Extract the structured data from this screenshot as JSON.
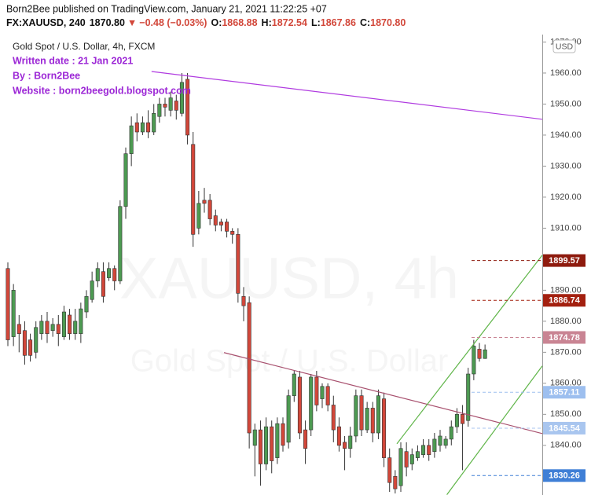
{
  "chart_data": {
    "type": "candlestick",
    "header": {
      "line1": "Born2Bee published on TradingView.com, January 21, 2021 11:22:25 +07",
      "symbol": "FX:XAUUSD, 240",
      "last": "1870.80",
      "arrow": "▼",
      "change": "−0.48 (−0.03%)",
      "ohlc": [
        {
          "label": "O:",
          "value": "1868.88"
        },
        {
          "label": "H:",
          "value": "1872.54"
        },
        {
          "label": "L:",
          "value": "1867.86"
        },
        {
          "label": "C:",
          "value": "1870.80"
        }
      ]
    },
    "legend_title": "Gold Spot / U.S. Dollar, 4h, FXCM",
    "annotations": [
      "Written date : 21 Jan 2021",
      "By : Born2Bee",
      "Website : born2beegold.blogspot.com"
    ],
    "annotation_color": "#9c27d6",
    "watermark": [
      "XAUUSD, 4h",
      "Gold Spot / U.S. Dollar"
    ],
    "currency": "USD",
    "up_color": "#4d9a52",
    "down_color": "#d2473a",
    "xlim": [
      -1.4,
      95.2
    ],
    "ylim": [
      1824,
      1972.4
    ],
    "yticks": [
      {
        "value": 1840,
        "label": "1840.00"
      },
      {
        "value": 1850,
        "label": "1850.00"
      },
      {
        "value": 1860,
        "label": "1860.00"
      },
      {
        "value": 1870,
        "label": "1870.00"
      },
      {
        "value": 1880,
        "label": "1880.00"
      },
      {
        "value": 1890,
        "label": "1890.00"
      },
      {
        "value": 1900,
        "label": "1900.00"
      },
      {
        "value": 1910,
        "label": "1910.00"
      },
      {
        "value": 1920,
        "label": "1920.00"
      },
      {
        "value": 1930,
        "label": "1930.00"
      },
      {
        "value": 1940,
        "label": "1940.00"
      },
      {
        "value": 1950,
        "label": "1950.00"
      },
      {
        "value": 1960,
        "label": "1960.00"
      },
      {
        "value": 1970,
        "label": "1970.00"
      }
    ],
    "open": [
      1897,
      1875,
      1879,
      1877,
      1874,
      1870,
      1876,
      1880,
      1877,
      1879,
      1875,
      1882,
      1876,
      1876,
      1883,
      1887,
      1893,
      1896,
      1894,
      1897,
      1893,
      1917,
      1934,
      1944,
      1941,
      1944,
      1941,
      1946,
      1950,
      1948,
      1951,
      1947,
      1958,
      1937,
      1910,
      1919,
      1919,
      1914,
      1912,
      1912,
      1909,
      1908,
      1888,
      1886,
      1840,
      1845,
      1834,
      1846,
      1836,
      1847,
      1841,
      1856,
      1862,
      1845,
      1845,
      1862,
      1855,
      1859,
      1853,
      1846,
      1841,
      1839,
      1843,
      1856,
      1845,
      1852,
      1844,
      1855,
      1836,
      1830,
      1827,
      1838,
      1834,
      1836,
      1837,
      1840,
      1838,
      1840,
      1840,
      1842,
      1846,
      1850,
      1848,
      1863,
      1871,
      1868
    ],
    "high": [
      1899,
      1892,
      1882,
      1880,
      1876,
      1880,
      1882,
      1883,
      1881,
      1882,
      1885,
      1884,
      1884,
      1886,
      1890,
      1896,
      1899,
      1899,
      1899,
      1898,
      1919,
      1936,
      1946,
      1947,
      1946,
      1948,
      1950,
      1952,
      1952,
      1954,
      1953,
      1960,
      1960,
      1941,
      1922,
      1923,
      1921,
      1916,
      1913,
      1913,
      1910,
      1910,
      1891,
      1888,
      1847,
      1848,
      1849,
      1848,
      1849,
      1849,
      1858,
      1864,
      1864,
      1848,
      1863,
      1864,
      1860,
      1860,
      1856,
      1849,
      1843,
      1846,
      1858,
      1858,
      1854,
      1854,
      1858,
      1857,
      1839,
      1832,
      1841,
      1841,
      1839,
      1840,
      1842,
      1842,
      1844,
      1845,
      1843,
      1848,
      1852,
      1853,
      1865,
      1874,
      1873,
      1872.5
    ],
    "low": [
      1872,
      1872,
      1870,
      1866,
      1867,
      1868,
      1874,
      1873,
      1875,
      1872,
      1874,
      1874,
      1874,
      1873,
      1881,
      1886,
      1891,
      1886,
      1893,
      1890,
      1892,
      1913,
      1930,
      1938,
      1940,
      1939,
      1940,
      1944,
      1946,
      1946,
      1945,
      1946,
      1937,
      1904,
      1908,
      1915,
      1911,
      1909,
      1909,
      1907,
      1905,
      1886,
      1880,
      1839,
      1830,
      1827,
      1832,
      1831,
      1834,
      1838,
      1839,
      1854,
      1842,
      1834,
      1843,
      1851,
      1852,
      1851,
      1841,
      1838,
      1832,
      1836,
      1841,
      1843,
      1844,
      1841,
      1842,
      1833,
      1825,
      1824.5,
      1825,
      1830,
      1832,
      1835,
      1836,
      1835,
      1836,
      1838,
      1839,
      1840,
      1844,
      1832,
      1846,
      1861,
      1867,
      1867.9
    ],
    "close": [
      1874,
      1890,
      1876,
      1869,
      1869,
      1878,
      1880,
      1876,
      1879,
      1876,
      1883,
      1876,
      1880,
      1884,
      1888,
      1893,
      1897,
      1888,
      1897,
      1893,
      1917,
      1934,
      1943,
      1941,
      1944,
      1941,
      1947,
      1950,
      1949,
      1952,
      1948,
      1957,
      1940,
      1908,
      1918,
      1918,
      1913,
      1911,
      1911,
      1909,
      1908,
      1889,
      1885,
      1844,
      1845,
      1834,
      1846,
      1835,
      1847,
      1840,
      1856,
      1863,
      1844,
      1839,
      1862,
      1853,
      1859,
      1853,
      1845,
      1840,
      1839,
      1843,
      1856,
      1845,
      1852,
      1844,
      1856,
      1836,
      1828,
      1826,
      1839,
      1833,
      1837,
      1838,
      1840,
      1837,
      1842,
      1843,
      1842,
      1846,
      1850,
      1847,
      1863,
      1872,
      1868,
      1870.8
    ],
    "trend_lines": [
      {
        "color": "#b03be0",
        "x": [
          25.6,
          95.2
        ],
        "y": [
          1960.5,
          1945.1
        ]
      },
      {
        "color": "#a8506e",
        "x": [
          38.5,
          95.2
        ],
        "y": [
          1869.9,
          1843.8
        ]
      },
      {
        "color": "#5fb548",
        "x": [
          69.3,
          95.2
        ],
        "y": [
          1840.5,
          1901.3
        ]
      },
      {
        "color": "#5fb548",
        "x": [
          78.2,
          95.2
        ],
        "y": [
          1824.1,
          1865.6
        ]
      }
    ],
    "levels": [
      {
        "value": 1899.57,
        "color": "#8e1b0e"
      },
      {
        "value": 1886.74,
        "color": "#a3200f"
      },
      {
        "value": 1874.78,
        "color": "#c98493"
      },
      {
        "value": 1857.11,
        "color": "#9dbfef"
      },
      {
        "value": 1845.54,
        "color": "#a9c6ef"
      },
      {
        "value": 1830.26,
        "color": "#3f7fd6"
      }
    ]
  }
}
